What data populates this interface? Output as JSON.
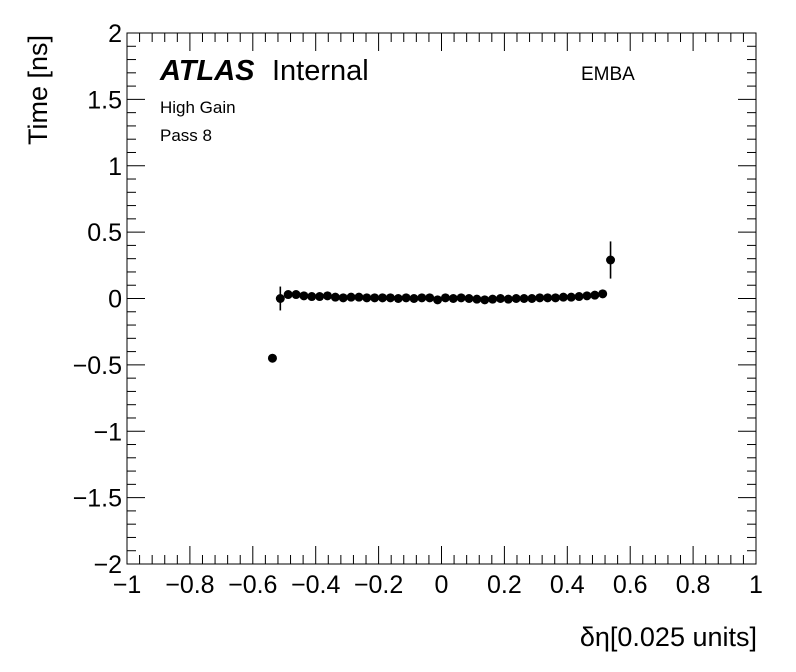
{
  "chart_data": {
    "type": "scatter",
    "experiment": "ATLAS",
    "status": "Internal",
    "region": "EMBA",
    "labels": [
      "High Gain",
      "Pass 8"
    ],
    "xlabel": "δη[0.025 units]",
    "ylabel": "Time [ns]",
    "xlim": [
      -1,
      1
    ],
    "ylim": [
      -2,
      2
    ],
    "x_ticks": [
      -1,
      -0.8,
      -0.6,
      -0.4,
      -0.2,
      0,
      0.2,
      0.4,
      0.6,
      0.8,
      1
    ],
    "x_tick_labels": [
      "−1",
      "−0.8",
      "−0.6",
      "−0.4",
      "−0.2",
      "0",
      "0.2",
      "0.4",
      "0.6",
      "0.8",
      "1"
    ],
    "y_ticks": [
      -2,
      -1.5,
      -1,
      -0.5,
      0,
      0.5,
      1,
      1.5,
      2
    ],
    "y_tick_labels": [
      "−2",
      "−1.5",
      "−1",
      "−0.5",
      "0",
      "0.5",
      "1",
      "1.5",
      "2"
    ],
    "marker_color": "#000000",
    "series": [
      {
        "points": [
          {
            "x": -0.5375,
            "y": -0.45,
            "err": 0.0
          },
          {
            "x": -0.5125,
            "y": 0.0,
            "err": 0.09
          },
          {
            "x": -0.4875,
            "y": 0.03,
            "err": 0.02
          },
          {
            "x": -0.4625,
            "y": 0.03,
            "err": 0.0
          },
          {
            "x": -0.4375,
            "y": 0.02,
            "err": 0.0
          },
          {
            "x": -0.4125,
            "y": 0.015,
            "err": 0.0
          },
          {
            "x": -0.3875,
            "y": 0.015,
            "err": 0.0
          },
          {
            "x": -0.3625,
            "y": 0.02,
            "err": 0.0
          },
          {
            "x": -0.3375,
            "y": 0.01,
            "err": 0.0
          },
          {
            "x": -0.3125,
            "y": 0.005,
            "err": 0.0
          },
          {
            "x": -0.2875,
            "y": 0.01,
            "err": 0.0
          },
          {
            "x": -0.2625,
            "y": 0.01,
            "err": 0.0
          },
          {
            "x": -0.2375,
            "y": 0.005,
            "err": 0.0
          },
          {
            "x": -0.2125,
            "y": 0.005,
            "err": 0.0
          },
          {
            "x": -0.1875,
            "y": 0.005,
            "err": 0.0
          },
          {
            "x": -0.1625,
            "y": 0.005,
            "err": 0.0
          },
          {
            "x": -0.1375,
            "y": 0.0,
            "err": 0.0
          },
          {
            "x": -0.1125,
            "y": 0.005,
            "err": 0.0
          },
          {
            "x": -0.0875,
            "y": 0.0,
            "err": 0.0
          },
          {
            "x": -0.0625,
            "y": 0.005,
            "err": 0.0
          },
          {
            "x": -0.0375,
            "y": 0.005,
            "err": 0.0
          },
          {
            "x": -0.0125,
            "y": -0.01,
            "err": 0.0
          },
          {
            "x": 0.0125,
            "y": 0.005,
            "err": 0.0
          },
          {
            "x": 0.0375,
            "y": 0.0,
            "err": 0.0
          },
          {
            "x": 0.0625,
            "y": 0.005,
            "err": 0.0
          },
          {
            "x": 0.0875,
            "y": 0.0,
            "err": 0.0
          },
          {
            "x": 0.1125,
            "y": -0.005,
            "err": 0.0
          },
          {
            "x": 0.1375,
            "y": -0.01,
            "err": 0.0
          },
          {
            "x": 0.1625,
            "y": -0.005,
            "err": 0.0
          },
          {
            "x": 0.1875,
            "y": 0.0,
            "err": 0.0
          },
          {
            "x": 0.2125,
            "y": -0.005,
            "err": 0.0
          },
          {
            "x": 0.2375,
            "y": 0.0,
            "err": 0.0
          },
          {
            "x": 0.2625,
            "y": 0.0,
            "err": 0.0
          },
          {
            "x": 0.2875,
            "y": 0.0,
            "err": 0.0
          },
          {
            "x": 0.3125,
            "y": 0.005,
            "err": 0.0
          },
          {
            "x": 0.3375,
            "y": 0.005,
            "err": 0.0
          },
          {
            "x": 0.3625,
            "y": 0.005,
            "err": 0.0
          },
          {
            "x": 0.3875,
            "y": 0.01,
            "err": 0.0
          },
          {
            "x": 0.4125,
            "y": 0.01,
            "err": 0.0
          },
          {
            "x": 0.4375,
            "y": 0.015,
            "err": 0.0
          },
          {
            "x": 0.4625,
            "y": 0.02,
            "err": 0.0
          },
          {
            "x": 0.4875,
            "y": 0.025,
            "err": 0.0
          },
          {
            "x": 0.5125,
            "y": 0.035,
            "err": 0.0
          },
          {
            "x": 0.5375,
            "y": 0.29,
            "err": 0.14
          }
        ]
      }
    ]
  }
}
